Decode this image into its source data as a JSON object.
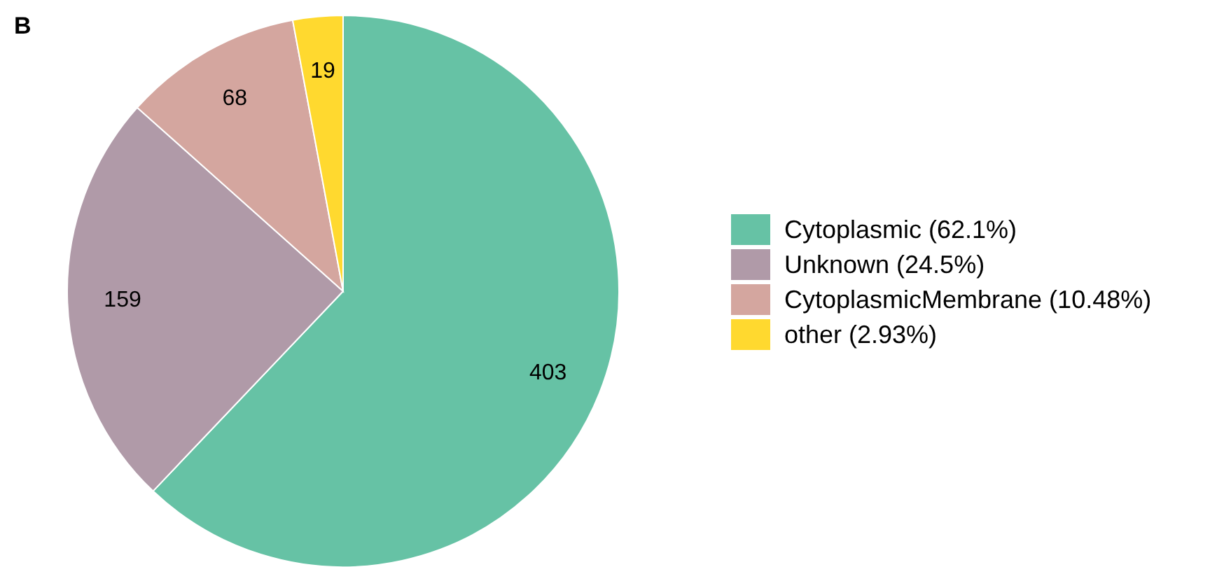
{
  "chart_data": {
    "type": "pie",
    "title": "B",
    "categories": [
      "Cytoplasmic (62.1%)",
      "Unknown (24.5%)",
      "CytoplasmicMembrane (10.48%)",
      "other (2.93%)"
    ],
    "values": [
      403,
      159,
      68,
      19
    ],
    "colors": [
      "#66c2a5",
      "#b09aa8",
      "#d4a69f",
      "#ffd92f"
    ],
    "data_labels": true,
    "legend": "right"
  }
}
